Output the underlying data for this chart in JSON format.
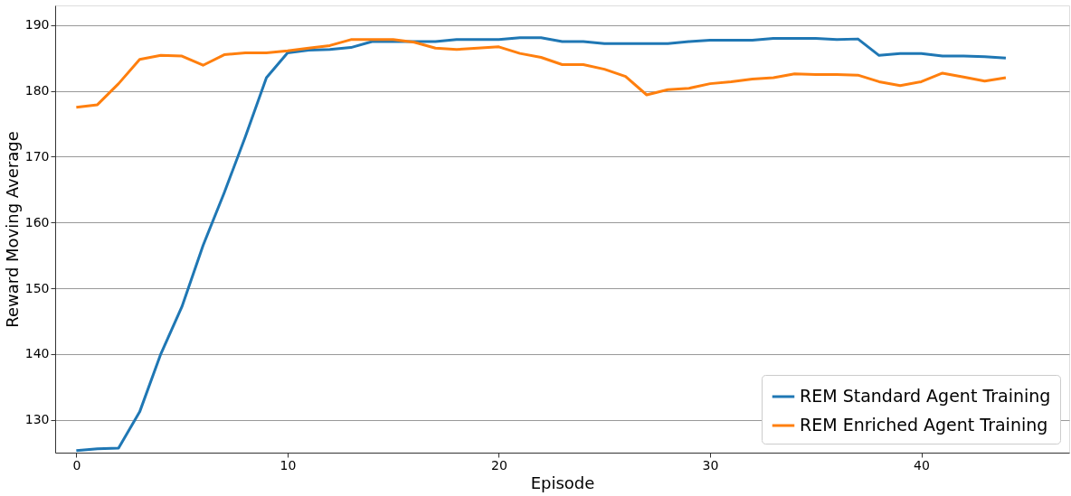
{
  "chart_data": {
    "type": "line",
    "xlabel": "Episode",
    "ylabel": "Reward Moving Average",
    "x": [
      0,
      1,
      2,
      3,
      4,
      5,
      6,
      7,
      8,
      9,
      10,
      11,
      12,
      13,
      14,
      15,
      16,
      17,
      18,
      19,
      20,
      21,
      22,
      23,
      24,
      25,
      26,
      27,
      28,
      29,
      30,
      31,
      32,
      33,
      34,
      35,
      36,
      37,
      38,
      39,
      40,
      41,
      42,
      43,
      44
    ],
    "series": [
      {
        "name": "REM Standard Agent Training",
        "color": "#1f77b4",
        "values": [
          125.3,
          125.6,
          125.7,
          131.2,
          140,
          147.2,
          156.5,
          164.5,
          173,
          182,
          185.8,
          186.2,
          186.3,
          186.6,
          187.5,
          187.5,
          187.5,
          187.5,
          187.8,
          187.8,
          187.8,
          188.1,
          188.1,
          187.5,
          187.5,
          187.2,
          187.2,
          187.2,
          187.2,
          187.5,
          187.7,
          187.7,
          187.7,
          188,
          188,
          188,
          187.8,
          187.9,
          185.4,
          185.7,
          185.7,
          185.3,
          185.3,
          185.2,
          185.0
        ]
      },
      {
        "name": "REM Enriched Agent Training",
        "color": "#ff7f0e",
        "values": [
          177.5,
          177.9,
          181.1,
          184.8,
          185.4,
          185.3,
          183.9,
          185.5,
          185.8,
          185.8,
          186.1,
          186.5,
          186.9,
          187.8,
          187.8,
          187.8,
          187.4,
          186.5,
          186.3,
          186.5,
          186.7,
          185.7,
          185.1,
          184.0,
          184.0,
          183.3,
          182.2,
          179.4,
          180.2,
          180.4,
          181.1,
          181.4,
          181.8,
          182.0,
          182.6,
          182.5,
          182.5,
          182.4,
          181.4,
          180.8,
          181.4,
          182.7,
          182.1,
          181.5,
          182.0
        ]
      }
    ],
    "xlim": [
      -1,
      47
    ],
    "xticks": [
      0,
      10,
      20,
      30,
      40
    ],
    "ylim": [
      125,
      193
    ],
    "yticks": [
      130,
      140,
      150,
      160,
      170,
      180,
      190
    ],
    "grid": "y",
    "legend": "bottom right",
    "marker": "none",
    "line_style": "solid"
  }
}
